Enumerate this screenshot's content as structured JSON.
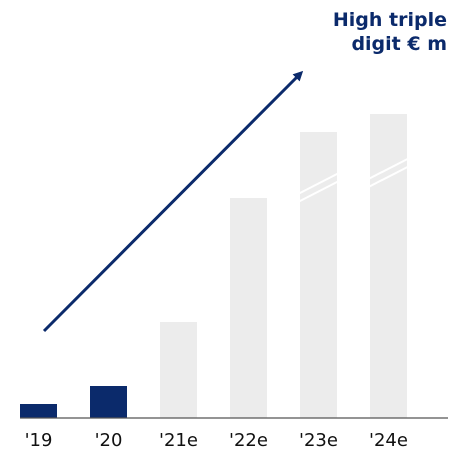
{
  "chart_data": {
    "type": "bar",
    "title": "",
    "xlabel": "",
    "ylabel": "",
    "categories": [
      "'19",
      "'20",
      "'21e",
      "'22e",
      "'23e",
      "'24e"
    ],
    "values": [
      7,
      16,
      48,
      110,
      143,
      152
    ],
    "ylim": [
      0,
      160
    ],
    "series": [
      {
        "values": [
          7,
          16,
          48,
          110,
          143,
          152
        ]
      }
    ],
    "annotation": {
      "line1": "High triple",
      "line2": "digit € m"
    },
    "colors": {
      "actual": "#0b2a6b",
      "estimate": "#ececec",
      "axis": "#555555",
      "arrow": "#0b2a6b",
      "annotation": "#0b2a6b"
    },
    "estimated_from_index": 2,
    "axis_break_categories": [
      "'23e",
      "'24e"
    ],
    "arrow": true,
    "grid": false,
    "legend": "none"
  }
}
